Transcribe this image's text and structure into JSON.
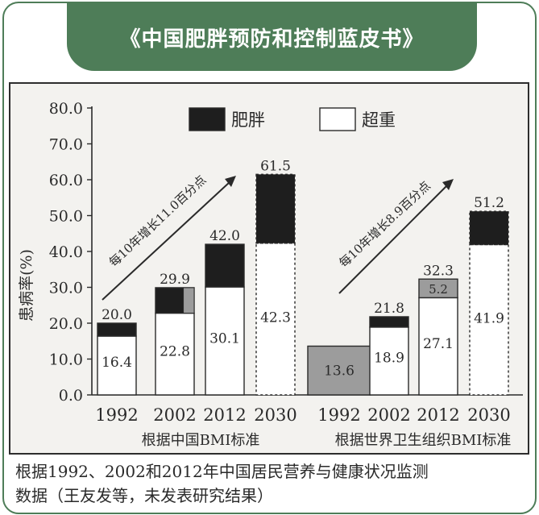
{
  "header": {
    "title": "《中国肥胖预防和控制蓝皮书》"
  },
  "caption": {
    "line1": "根据1992、2002和2012年中国居民营养与健康状况监测",
    "line2": "数据（王友发等，未发表研究结果）"
  },
  "colors": {
    "frame": "#4e7d58",
    "obese": "#1e1e1e",
    "overweight": "#ffffff",
    "shaded": "#9c9c9c",
    "chart_bg": "#f3f2ef"
  },
  "chart_data": {
    "type": "bar",
    "stacked": true,
    "ylabel": "患病率(%)",
    "ylim": [
      0,
      80
    ],
    "yticks": [
      "0.0",
      "10.0",
      "20.0",
      "30.0",
      "40.0",
      "50.0",
      "60.0",
      "70.0",
      "80.0"
    ],
    "legend": {
      "position": "top",
      "obese": "肥胖",
      "overweight": "超重"
    },
    "groups": [
      {
        "label": "根据中国BMI标准",
        "annotation": "每10年增长11.0百分点",
        "bars": [
          {
            "year": "1992",
            "overweight": 16.4,
            "total": 20.0,
            "overweight_label": "16.4",
            "total_label": "20.0"
          },
          {
            "year": "2002",
            "overweight": 22.8,
            "total": 29.9,
            "overweight_label": "22.8",
            "total_label": "29.9"
          },
          {
            "year": "2012",
            "overweight": 30.1,
            "total": 42.0,
            "overweight_label": "30.1",
            "total_label": "42.0"
          },
          {
            "year": "2030",
            "overweight": 42.3,
            "total": 61.5,
            "overweight_label": "42.3",
            "total_label": "61.5",
            "projected": true
          }
        ]
      },
      {
        "label": "根据世界卫生组织BMI标准",
        "annotation": "每10年增长8.9百分点",
        "bars": [
          {
            "year": "1992",
            "overweight": 13.6,
            "total": 13.6,
            "overweight_label": "13.6",
            "total_label": ""
          },
          {
            "year": "2002",
            "overweight": 18.9,
            "total": 21.8,
            "overweight_label": "18.9",
            "total_label": "21.8"
          },
          {
            "year": "2012",
            "overweight": 27.1,
            "total": 32.3,
            "overweight_label": "27.1",
            "total_label": "32.3",
            "inner_label": "5.2"
          },
          {
            "year": "2030",
            "overweight": 41.9,
            "total": 51.2,
            "overweight_label": "41.9",
            "total_label": "51.2",
            "projected": true
          }
        ]
      }
    ]
  }
}
